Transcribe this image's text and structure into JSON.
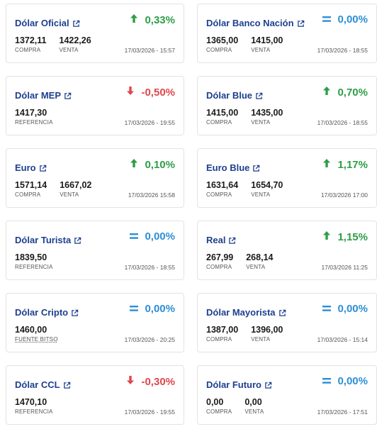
{
  "cards": [
    {
      "title": "Dólar Oficial",
      "dir": "up",
      "change": "0,33%",
      "values": [
        {
          "num": "1372,11",
          "lbl": "COMPRA"
        },
        {
          "num": "1422,26",
          "lbl": "VENTA"
        }
      ],
      "date": "17/03/2026 - 15:57"
    },
    {
      "title": "Dólar Banco Nación",
      "dir": "eq",
      "change": "0,00%",
      "values": [
        {
          "num": "1365,00",
          "lbl": "COMPRA"
        },
        {
          "num": "1415,00",
          "lbl": "VENTA"
        }
      ],
      "date": "17/03/2026 - 18:55"
    },
    {
      "title": "Dólar MEP",
      "dir": "down",
      "change": "-0,50%",
      "values": [
        {
          "num": "1417,30",
          "lbl": "REFERENCIA"
        }
      ],
      "date": "17/03/2026 - 19:55"
    },
    {
      "title": "Dólar Blue",
      "dir": "up",
      "change": "0,70%",
      "values": [
        {
          "num": "1415,00",
          "lbl": "COMPRA"
        },
        {
          "num": "1435,00",
          "lbl": "VENTA"
        }
      ],
      "date": "17/03/2026 - 18:55"
    },
    {
      "title": "Euro",
      "dir": "up",
      "change": "0,10%",
      "values": [
        {
          "num": "1571,14",
          "lbl": "COMPRA"
        },
        {
          "num": "1667,02",
          "lbl": "VENTA"
        }
      ],
      "date": "17/03/2026 15:58"
    },
    {
      "title": "Euro Blue",
      "dir": "up",
      "change": "1,17%",
      "values": [
        {
          "num": "1631,64",
          "lbl": "COMPRA"
        },
        {
          "num": "1654,70",
          "lbl": "VENTA"
        }
      ],
      "date": "17/03/2026 17:00"
    },
    {
      "title": "Dólar Turista",
      "dir": "eq",
      "change": "0,00%",
      "values": [
        {
          "num": "1839,50",
          "lbl": "REFERENCIA"
        }
      ],
      "date": "17/03/2026 - 18:55"
    },
    {
      "title": "Real",
      "dir": "up",
      "change": "1,15%",
      "values": [
        {
          "num": "267,99",
          "lbl": "COMPRA"
        },
        {
          "num": "268,14",
          "lbl": "VENTA"
        }
      ],
      "date": "17/03/2026 11:25"
    },
    {
      "title": "Dólar Cripto",
      "dir": "eq",
      "change": "0,00%",
      "values": [
        {
          "num": "1460,00",
          "lbl": "FUENTE BITSO",
          "link": true
        }
      ],
      "date": "17/03/2026 - 20:25"
    },
    {
      "title": "Dólar Mayorista",
      "dir": "eq",
      "change": "0,00%",
      "values": [
        {
          "num": "1387,00",
          "lbl": "COMPRA"
        },
        {
          "num": "1396,00",
          "lbl": "VENTA"
        }
      ],
      "date": "17/03/2026 - 15:14"
    },
    {
      "title": "Dólar CCL",
      "dir": "down",
      "change": "-0,30%",
      "values": [
        {
          "num": "1470,10",
          "lbl": "REFERENCIA"
        }
      ],
      "date": "17/03/2026 - 19:55"
    },
    {
      "title": "Dólar Futuro",
      "dir": "eq",
      "change": "0,00%",
      "values": [
        {
          "num": "0,00",
          "lbl": "COMPRA"
        },
        {
          "num": "0,00",
          "lbl": "VENTA"
        }
      ],
      "date": "17/03/2026 - 17:51"
    }
  ],
  "colors": {
    "up": "#2e9e46",
    "down": "#e0474c",
    "eq": "#2c8fd6",
    "title": "#1d3f8f"
  }
}
